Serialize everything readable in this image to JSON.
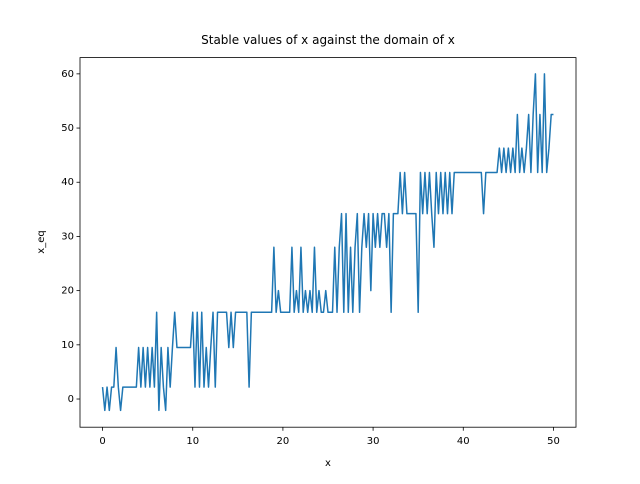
{
  "chart_data": {
    "type": "line",
    "title": "Stable values of x against the domain of x",
    "xlabel": "x",
    "ylabel": "x_eq",
    "color": "#1f77b4",
    "xlim": [
      -2.5,
      52.5
    ],
    "ylim": [
      -5.2,
      63.0
    ],
    "xticks": [
      0,
      10,
      20,
      30,
      40,
      50
    ],
    "yticks": [
      0,
      10,
      20,
      30,
      40,
      50,
      60
    ],
    "x": [
      0,
      0.25,
      0.5,
      0.75,
      1,
      1.25,
      1.5,
      1.75,
      2,
      2.25,
      2.5,
      2.75,
      3,
      3.25,
      3.5,
      3.75,
      4,
      4.25,
      4.5,
      4.75,
      5,
      5.25,
      5.5,
      5.75,
      6,
      6.25,
      6.5,
      6.75,
      7,
      7.25,
      7.5,
      7.75,
      8,
      8.25,
      8.5,
      8.75,
      9,
      9.25,
      9.5,
      9.75,
      10,
      10.25,
      10.5,
      10.75,
      11,
      11.25,
      11.5,
      11.75,
      12,
      12.25,
      12.5,
      12.75,
      13,
      13.25,
      13.5,
      13.75,
      14,
      14.25,
      14.5,
      14.75,
      15,
      15.25,
      15.5,
      15.75,
      16,
      16.25,
      16.5,
      16.75,
      17,
      17.25,
      17.5,
      17.75,
      18,
      18.25,
      18.5,
      18.75,
      19,
      19.25,
      19.5,
      19.75,
      20,
      20.25,
      20.5,
      20.75,
      21,
      21.25,
      21.5,
      21.75,
      22,
      22.25,
      22.5,
      22.75,
      23,
      23.25,
      23.5,
      23.75,
      24,
      24.25,
      24.5,
      24.75,
      25,
      25.25,
      25.5,
      25.75,
      26,
      26.25,
      26.5,
      26.75,
      27,
      27.25,
      27.5,
      27.75,
      28,
      28.25,
      28.5,
      28.75,
      29,
      29.25,
      29.5,
      29.75,
      30,
      30.25,
      30.5,
      30.75,
      31,
      31.25,
      31.5,
      31.75,
      32,
      32.25,
      32.5,
      32.75,
      33,
      33.25,
      33.5,
      33.75,
      34,
      34.25,
      34.5,
      34.75,
      35,
      35.25,
      35.5,
      35.75,
      36,
      36.25,
      36.5,
      36.75,
      37,
      37.25,
      37.5,
      37.75,
      38,
      38.25,
      38.5,
      38.75,
      39,
      39.25,
      39.5,
      39.75,
      40,
      40.25,
      40.5,
      40.75,
      41,
      41.25,
      41.5,
      41.75,
      42,
      42.25,
      42.5,
      42.75,
      43,
      43.25,
      43.5,
      43.75,
      44,
      44.25,
      44.5,
      44.75,
      45,
      45.25,
      45.5,
      45.75,
      46,
      46.25,
      46.5,
      46.75,
      47,
      47.25,
      47.5,
      47.75,
      48,
      48.25,
      48.5,
      48.75,
      49,
      49.25,
      49.5,
      49.75,
      50
    ],
    "values": [
      2.2,
      -2.1,
      2.2,
      -2.1,
      2.2,
      2.2,
      9.5,
      2.2,
      -2.1,
      2.2,
      2.2,
      2.2,
      2.2,
      2.2,
      2.2,
      2.2,
      9.5,
      2.2,
      9.5,
      2.2,
      9.5,
      2.2,
      9.5,
      2.2,
      16,
      -2.1,
      9.5,
      2.2,
      -2.1,
      9.5,
      2.2,
      9.5,
      16,
      9.5,
      9.5,
      9.5,
      9.5,
      9.5,
      9.5,
      9.5,
      16,
      2.2,
      16,
      2.2,
      16,
      2.2,
      9.5,
      2.2,
      9.5,
      16,
      2.2,
      16,
      16,
      16,
      16,
      16,
      9.5,
      16,
      9.5,
      16,
      16,
      16,
      16,
      16,
      16,
      2.2,
      16,
      16,
      16,
      16,
      16,
      16,
      16,
      16,
      16,
      16,
      28,
      16,
      20,
      16,
      16,
      16,
      16,
      16,
      28,
      16,
      20,
      16,
      28,
      16,
      20,
      16,
      20,
      16,
      28,
      16,
      20,
      16,
      16,
      20,
      16,
      16,
      16,
      28,
      16,
      28,
      34.2,
      16,
      34.2,
      16,
      28,
      16,
      28,
      34.2,
      16,
      28,
      34.2,
      28,
      34.2,
      20,
      34.2,
      28,
      34.2,
      28,
      34.2,
      34.2,
      28,
      34.2,
      16,
      34.2,
      34.2,
      34.2,
      41.8,
      34.2,
      41.8,
      34.2,
      34.2,
      34.2,
      34.2,
      34.2,
      16,
      41.8,
      34.2,
      41.8,
      34.2,
      41.8,
      34.2,
      28,
      41.8,
      34.2,
      41.8,
      34.2,
      41.8,
      34.2,
      41.8,
      34.2,
      41.8,
      41.8,
      41.8,
      41.8,
      41.8,
      41.8,
      41.8,
      41.8,
      41.8,
      41.8,
      41.8,
      41.8,
      41.8,
      34.2,
      41.8,
      41.8,
      41.8,
      41.8,
      41.8,
      41.8,
      46.3,
      41.8,
      46.3,
      41.8,
      46.3,
      41.8,
      46.3,
      41.8,
      52.5,
      41.8,
      46.3,
      41.8,
      46.3,
      52.5,
      41.8,
      52.5,
      60,
      41.8,
      52.5,
      41.8,
      60,
      41.8,
      46.3,
      52.5,
      52.5
    ]
  }
}
